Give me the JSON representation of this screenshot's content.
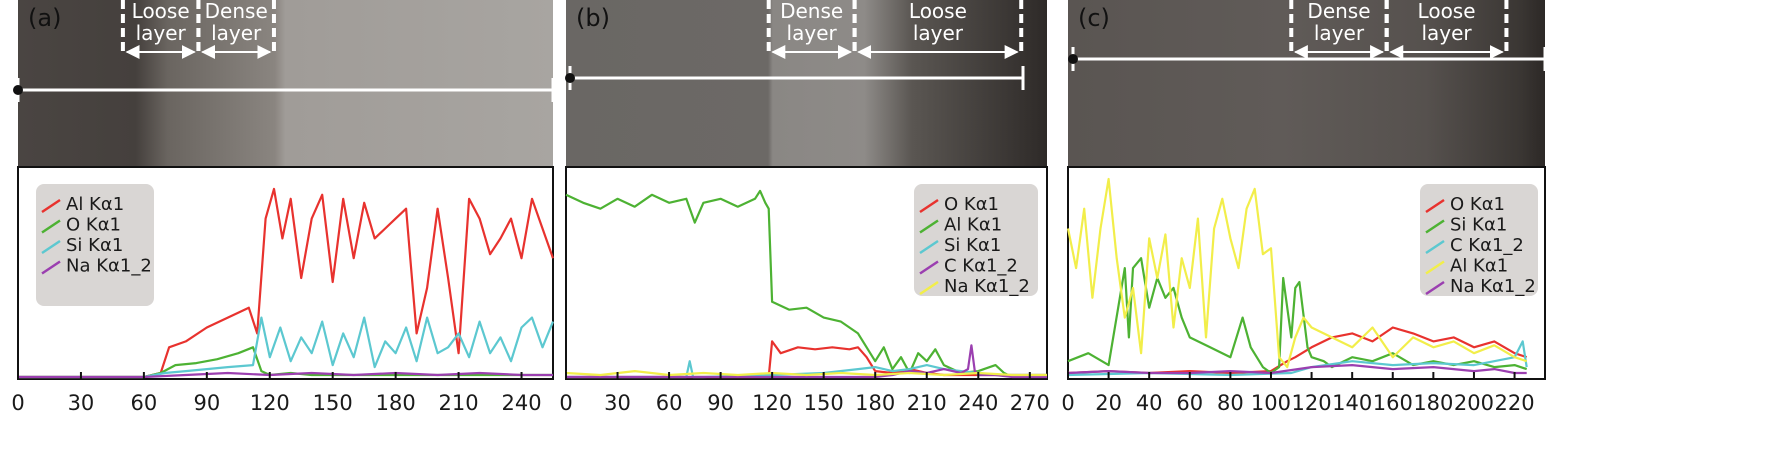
{
  "colors": {
    "red": "#e8322e",
    "green": "#4db233",
    "cyan": "#5cc8d0",
    "purple": "#9b3fb0",
    "yellow": "#f2ee4a",
    "legend_bg": "#d9d6d4",
    "micrograph_dark": "#3a3633",
    "micrograph_light": "#a4a19d"
  },
  "panels": [
    {
      "label": "(a)",
      "layers": [
        {
          "text": "Loose layer",
          "from_x": 50,
          "to_x": 86
        },
        {
          "text": "Dense layer",
          "from_x": 86,
          "to_x": 122
        }
      ],
      "legend": [
        {
          "name": "Al Kα1",
          "color": "red"
        },
        {
          "name": "O Kα1",
          "color": "green"
        },
        {
          "name": "Si Kα1",
          "color": "cyan"
        },
        {
          "name": "Na Kα1_2",
          "color": "purple"
        }
      ]
    },
    {
      "label": "(b)",
      "layers": [
        {
          "text": "Dense layer",
          "from_x": 118,
          "to_x": 168
        },
        {
          "text": "Loose layer",
          "from_x": 168,
          "to_x": 265
        }
      ],
      "legend": [
        {
          "name": "O Kα1",
          "color": "red"
        },
        {
          "name": "Al Kα1",
          "color": "green"
        },
        {
          "name": "Si Kα1",
          "color": "cyan"
        },
        {
          "name": "C Kα1_2",
          "color": "purple"
        },
        {
          "name": "Na Kα1_2",
          "color": "yellow"
        }
      ]
    },
    {
      "label": "(c)",
      "layers": [
        {
          "text": "Dense layer",
          "from_x": 110,
          "to_x": 157
        },
        {
          "text": "Loose layer",
          "from_x": 157,
          "to_x": 216
        }
      ],
      "legend": [
        {
          "name": "O Kα1",
          "color": "red"
        },
        {
          "name": "Si Kα1",
          "color": "green"
        },
        {
          "name": "C Kα1_2",
          "color": "cyan"
        },
        {
          "name": "Al Kα1",
          "color": "yellow"
        },
        {
          "name": "Na Kα1_2",
          "color": "purple"
        }
      ]
    }
  ],
  "chart_data": [
    {
      "type": "line",
      "title": "(a)",
      "xlim": [
        0,
        255
      ],
      "ylim": [
        0,
        100
      ],
      "x_ticks": [
        0,
        30,
        60,
        90,
        120,
        150,
        180,
        210,
        240
      ],
      "series": [
        {
          "name": "Al Kα1",
          "color": "red",
          "x": [
            0,
            60,
            68,
            72,
            80,
            90,
            100,
            110,
            114,
            118,
            122,
            126,
            130,
            135,
            140,
            145,
            150,
            155,
            160,
            165,
            170,
            175,
            180,
            185,
            190,
            195,
            200,
            205,
            210,
            215,
            220,
            225,
            230,
            235,
            240,
            245,
            250,
            255
          ],
          "y": [
            0,
            0,
            2,
            15,
            18,
            25,
            30,
            35,
            22,
            80,
            95,
            70,
            90,
            50,
            80,
            92,
            48,
            90,
            60,
            88,
            70,
            75,
            80,
            85,
            22,
            45,
            85,
            50,
            12,
            90,
            80,
            62,
            70,
            80,
            60,
            90,
            75,
            60
          ]
        },
        {
          "name": "O Kα1",
          "color": "green",
          "x": [
            0,
            60,
            68,
            75,
            85,
            95,
            105,
            112,
            116,
            120,
            130,
            140,
            150,
            160,
            170,
            180,
            190,
            200,
            210,
            220,
            230,
            240,
            250,
            255
          ],
          "y": [
            0,
            0,
            2,
            6,
            7,
            9,
            12,
            15,
            3,
            1,
            2,
            1,
            1,
            1,
            1,
            1,
            1,
            1,
            1,
            1,
            1,
            1,
            1,
            1
          ]
        },
        {
          "name": "Si Kα1",
          "color": "cyan",
          "x": [
            0,
            60,
            70,
            80,
            90,
            100,
            112,
            116,
            120,
            125,
            130,
            135,
            140,
            145,
            150,
            155,
            160,
            165,
            170,
            175,
            180,
            185,
            190,
            195,
            200,
            205,
            210,
            215,
            220,
            225,
            230,
            235,
            240,
            245,
            250,
            255
          ],
          "y": [
            0,
            0,
            2,
            3,
            4,
            5,
            6,
            30,
            10,
            25,
            8,
            20,
            12,
            28,
            6,
            22,
            10,
            30,
            5,
            18,
            12,
            25,
            8,
            30,
            12,
            15,
            22,
            10,
            28,
            12,
            20,
            8,
            25,
            30,
            15,
            28
          ]
        },
        {
          "name": "Na Kα1_2",
          "color": "purple",
          "x": [
            0,
            60,
            80,
            100,
            120,
            140,
            160,
            180,
            200,
            220,
            240,
            255
          ],
          "y": [
            0,
            0,
            1,
            2,
            1,
            2,
            1,
            2,
            1,
            2,
            1,
            1
          ]
        }
      ]
    },
    {
      "type": "line",
      "title": "(b)",
      "xlim": [
        0,
        280
      ],
      "ylim": [
        0,
        100
      ],
      "x_ticks": [
        0,
        30,
        60,
        90,
        120,
        150,
        180,
        210,
        240,
        270
      ],
      "series": [
        {
          "name": "O Kα1",
          "color": "red",
          "x": [
            0,
            118,
            120,
            125,
            135,
            145,
            155,
            165,
            170,
            175,
            180,
            190,
            200,
            210,
            220,
            230,
            240,
            250,
            260,
            270,
            280
          ],
          "y": [
            0,
            0,
            18,
            12,
            15,
            14,
            15,
            14,
            15,
            10,
            3,
            2,
            4,
            2,
            1,
            1,
            1,
            1,
            1,
            1,
            1
          ]
        },
        {
          "name": "Al Kα1",
          "color": "green",
          "x": [
            0,
            10,
            20,
            30,
            40,
            50,
            60,
            70,
            75,
            80,
            90,
            100,
            110,
            113,
            116,
            118,
            120,
            130,
            140,
            150,
            160,
            170,
            180,
            185,
            190,
            195,
            200,
            205,
            210,
            215,
            220,
            225,
            230,
            240,
            250,
            255,
            260
          ],
          "y": [
            92,
            88,
            85,
            90,
            86,
            92,
            88,
            90,
            78,
            88,
            90,
            86,
            90,
            94,
            88,
            85,
            38,
            34,
            35,
            30,
            28,
            22,
            8,
            15,
            4,
            10,
            2,
            12,
            8,
            14,
            6,
            4,
            2,
            3,
            6,
            2,
            0
          ]
        },
        {
          "name": "Si Kα1",
          "color": "cyan",
          "x": [
            0,
            70,
            72,
            74,
            80,
            120,
            150,
            170,
            180,
            190,
            200,
            210,
            220,
            230,
            240,
            250,
            270,
            280
          ],
          "y": [
            0,
            0,
            8,
            0,
            0,
            1,
            2,
            4,
            5,
            3,
            4,
            6,
            4,
            3,
            2,
            1,
            1,
            1
          ]
        },
        {
          "name": "C Kα1_2",
          "color": "purple",
          "x": [
            0,
            180,
            190,
            200,
            210,
            220,
            230,
            234,
            236,
            238,
            240,
            250,
            260,
            280
          ],
          "y": [
            0,
            0,
            1,
            3,
            2,
            4,
            2,
            4,
            16,
            3,
            1,
            1,
            0,
            0
          ]
        },
        {
          "name": "Na Kα1_2",
          "color": "yellow",
          "x": [
            0,
            20,
            40,
            60,
            80,
            100,
            120,
            140,
            160,
            180,
            200,
            220,
            240,
            260,
            280
          ],
          "y": [
            2,
            1,
            3,
            1,
            2,
            1,
            2,
            1,
            2,
            1,
            2,
            1,
            2,
            1,
            1
          ]
        }
      ]
    },
    {
      "type": "line",
      "title": "(c)",
      "xlim": [
        0,
        235
      ],
      "ylim": [
        0,
        100
      ],
      "x_ticks": [
        0,
        20,
        40,
        60,
        80,
        100,
        120,
        140,
        160,
        180,
        200,
        220
      ],
      "series": [
        {
          "name": "O Kα1",
          "color": "red",
          "x": [
            0,
            20,
            40,
            60,
            80,
            100,
            108,
            112,
            120,
            130,
            140,
            150,
            160,
            170,
            180,
            190,
            200,
            210,
            220,
            226
          ],
          "y": [
            2,
            3,
            2,
            3,
            2,
            3,
            8,
            10,
            15,
            20,
            22,
            18,
            25,
            22,
            18,
            20,
            15,
            18,
            12,
            10
          ]
        },
        {
          "name": "Si Kα1",
          "color": "green",
          "x": [
            0,
            10,
            20,
            28,
            30,
            32,
            36,
            40,
            44,
            48,
            52,
            56,
            60,
            70,
            80,
            86,
            90,
            96,
            100,
            104,
            106,
            110,
            112,
            114,
            118,
            120,
            126,
            130,
            140,
            150,
            160,
            170,
            180,
            190,
            200,
            210,
            220,
            226
          ],
          "y": [
            8,
            12,
            6,
            55,
            20,
            55,
            60,
            35,
            50,
            40,
            45,
            30,
            20,
            15,
            10,
            30,
            15,
            5,
            2,
            5,
            50,
            20,
            45,
            48,
            15,
            10,
            8,
            5,
            10,
            8,
            12,
            6,
            8,
            6,
            8,
            5,
            6,
            4
          ]
        },
        {
          "name": "C Kα1_2",
          "color": "cyan",
          "x": [
            0,
            40,
            80,
            110,
            120,
            140,
            160,
            180,
            200,
            210,
            220,
            224,
            226
          ],
          "y": [
            1,
            2,
            1,
            2,
            5,
            8,
            6,
            7,
            6,
            8,
            10,
            18,
            5
          ]
        },
        {
          "name": "Al Kα1",
          "color": "yellow",
          "x": [
            0,
            4,
            8,
            12,
            16,
            20,
            24,
            28,
            32,
            36,
            40,
            44,
            48,
            52,
            56,
            60,
            64,
            68,
            72,
            76,
            80,
            84,
            88,
            92,
            96,
            100,
            104,
            108,
            112,
            116,
            120,
            130,
            140,
            150,
            160,
            170,
            180,
            190,
            200,
            210,
            220,
            226
          ],
          "y": [
            75,
            55,
            85,
            40,
            75,
            100,
            60,
            30,
            45,
            12,
            70,
            50,
            72,
            25,
            60,
            45,
            80,
            20,
            75,
            90,
            70,
            55,
            85,
            95,
            62,
            65,
            10,
            5,
            20,
            30,
            25,
            20,
            15,
            25,
            10,
            20,
            15,
            18,
            12,
            16,
            10,
            8
          ]
        },
        {
          "name": "Na Kα1_2",
          "color": "purple",
          "x": [
            0,
            20,
            40,
            60,
            80,
            100,
            120,
            140,
            160,
            180,
            200,
            210,
            220,
            226
          ],
          "y": [
            2,
            3,
            2,
            2,
            3,
            2,
            5,
            6,
            4,
            5,
            3,
            4,
            2,
            2
          ]
        }
      ]
    }
  ]
}
